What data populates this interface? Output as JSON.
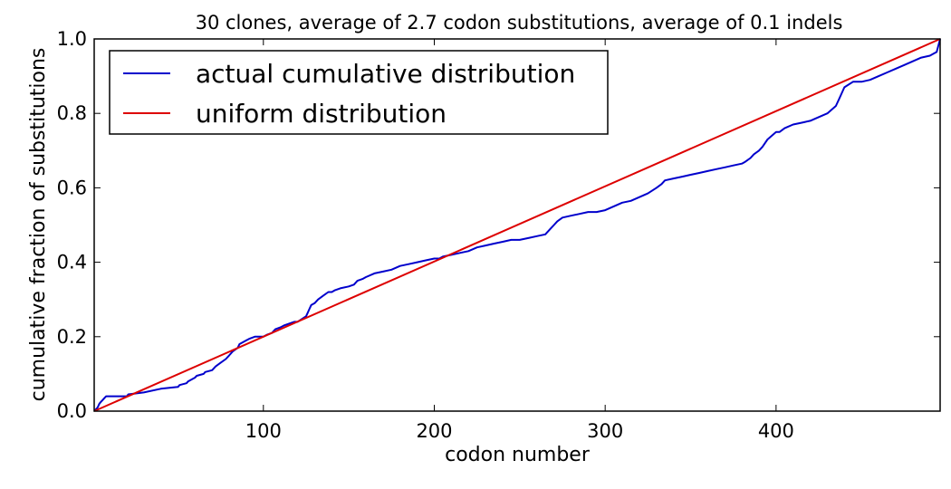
{
  "chart_data": {
    "type": "line",
    "title": "30 clones, average of 2.7 codon substitutions, average of 0.1 indels",
    "xlabel": "codon number",
    "ylabel": "cumulative fraction of substitutions",
    "xlim": [
      1,
      496
    ],
    "ylim": [
      0.0,
      1.0
    ],
    "x_ticks": [
      100,
      200,
      300,
      400
    ],
    "x_tick_labels": [
      "100",
      "200",
      "300",
      "400"
    ],
    "y_ticks": [
      0.0,
      0.2,
      0.4,
      0.6,
      0.8,
      1.0
    ],
    "y_tick_labels": [
      "0.0",
      "0.2",
      "0.4",
      "0.6",
      "0.8",
      "1.0"
    ],
    "grid": false,
    "legend_position": "top-left",
    "series": [
      {
        "name": "actual cumulative distribution",
        "color": "#0000cc",
        "x": [
          1,
          2,
          3,
          4,
          5,
          6,
          7,
          8,
          20,
          21,
          30,
          40,
          50,
          51,
          55,
          56,
          60,
          61,
          65,
          66,
          70,
          72,
          75,
          78,
          80,
          82,
          85,
          86,
          90,
          92,
          95,
          100,
          102,
          105,
          107,
          110,
          112,
          115,
          118,
          120,
          125,
          126,
          127,
          128,
          130,
          132,
          135,
          138,
          140,
          142,
          145,
          150,
          153,
          155,
          158,
          160,
          165,
          170,
          175,
          180,
          185,
          190,
          195,
          200,
          203,
          205,
          210,
          215,
          220,
          225,
          230,
          235,
          240,
          245,
          250,
          255,
          260,
          265,
          266,
          268,
          270,
          272,
          275,
          280,
          285,
          290,
          295,
          300,
          305,
          310,
          315,
          320,
          325,
          330,
          333,
          335,
          340,
          345,
          350,
          355,
          360,
          365,
          370,
          375,
          380,
          382,
          385,
          387,
          390,
          392,
          395,
          400,
          402,
          405,
          410,
          415,
          420,
          425,
          430,
          435,
          437,
          440,
          445,
          450,
          455,
          460,
          465,
          470,
          475,
          480,
          485,
          490,
          492,
          494,
          496
        ],
        "y": [
          0.0,
          0.005,
          0.01,
          0.02,
          0.025,
          0.03,
          0.035,
          0.04,
          0.04,
          0.045,
          0.05,
          0.06,
          0.065,
          0.07,
          0.075,
          0.08,
          0.09,
          0.095,
          0.1,
          0.105,
          0.11,
          0.12,
          0.13,
          0.14,
          0.15,
          0.16,
          0.17,
          0.18,
          0.19,
          0.195,
          0.2,
          0.2,
          0.205,
          0.21,
          0.22,
          0.225,
          0.23,
          0.235,
          0.24,
          0.24,
          0.255,
          0.265,
          0.275,
          0.285,
          0.29,
          0.3,
          0.31,
          0.32,
          0.32,
          0.325,
          0.33,
          0.335,
          0.34,
          0.35,
          0.355,
          0.36,
          0.37,
          0.375,
          0.38,
          0.39,
          0.395,
          0.4,
          0.405,
          0.41,
          0.41,
          0.415,
          0.42,
          0.425,
          0.43,
          0.44,
          0.445,
          0.45,
          0.455,
          0.46,
          0.46,
          0.465,
          0.47,
          0.475,
          0.48,
          0.49,
          0.5,
          0.51,
          0.52,
          0.525,
          0.53,
          0.535,
          0.535,
          0.54,
          0.55,
          0.56,
          0.565,
          0.575,
          0.585,
          0.6,
          0.61,
          0.62,
          0.625,
          0.63,
          0.635,
          0.64,
          0.645,
          0.65,
          0.655,
          0.66,
          0.665,
          0.67,
          0.68,
          0.69,
          0.7,
          0.71,
          0.73,
          0.75,
          0.75,
          0.76,
          0.77,
          0.775,
          0.78,
          0.79,
          0.8,
          0.82,
          0.84,
          0.87,
          0.885,
          0.885,
          0.89,
          0.9,
          0.91,
          0.92,
          0.93,
          0.94,
          0.95,
          0.955,
          0.96,
          0.965,
          1.0
        ]
      },
      {
        "name": "uniform distribution",
        "color": "#dd0000",
        "x": [
          1,
          496
        ],
        "y": [
          0.0,
          1.0
        ]
      }
    ]
  }
}
